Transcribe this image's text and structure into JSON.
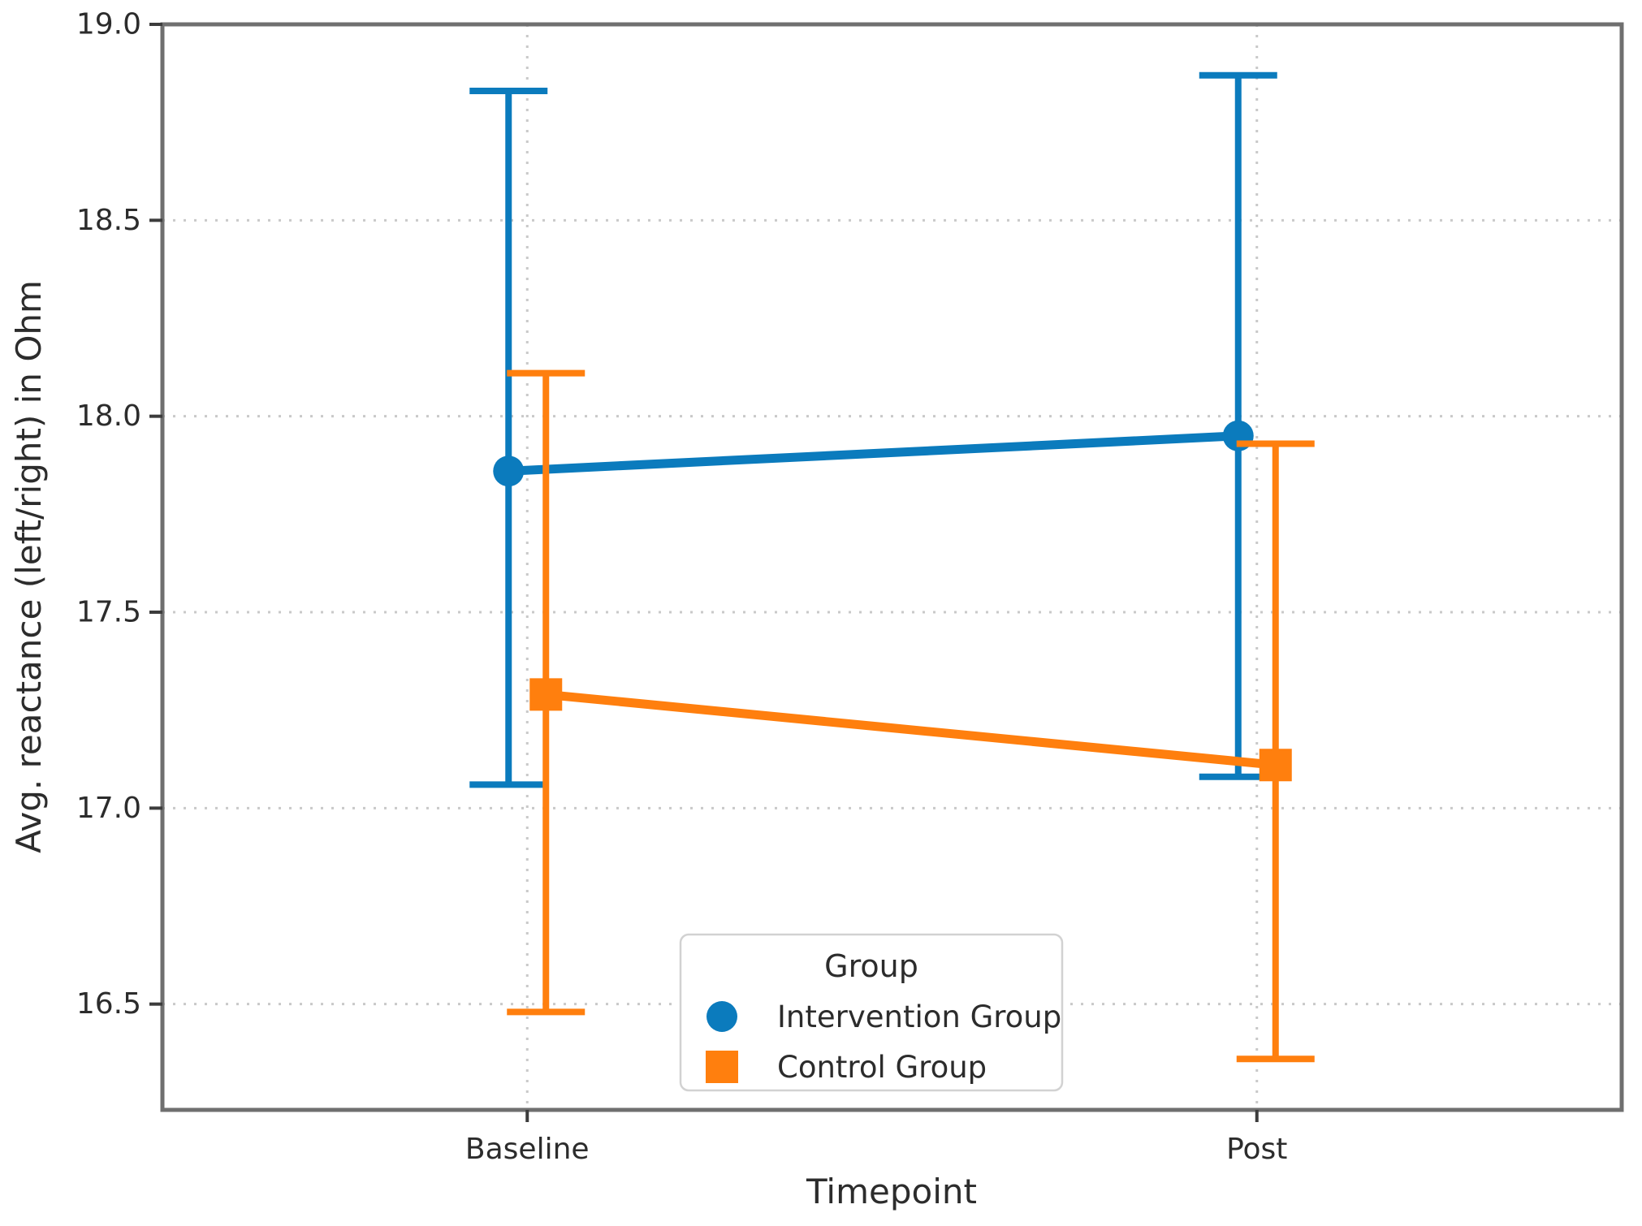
{
  "chart_data": {
    "type": "line",
    "subtype": "pointplot-with-error-bars",
    "categories": [
      "Baseline",
      "Post"
    ],
    "xlabel": "Timepoint",
    "ylabel": "Avg. reactance (left/right) in Ohm",
    "ylim": [
      16.23,
      19.0
    ],
    "yticks": [
      19.0,
      18.5,
      18.0,
      17.5,
      17.0,
      16.5
    ],
    "ytick_labels": [
      "19.0",
      "18.5",
      "18.0",
      "17.5",
      "17.0",
      "16.5"
    ],
    "grid": {
      "visible": true,
      "style": "dotted",
      "axes": "both"
    },
    "legend": {
      "title": "Group",
      "position": "lower center"
    },
    "series": [
      {
        "name": "Intervention Group",
        "marker": "circle",
        "color": "#0b7bbd",
        "values": [
          17.86,
          17.95
        ],
        "ci_low": [
          17.06,
          17.08
        ],
        "ci_high": [
          18.83,
          18.87
        ]
      },
      {
        "name": "Control Group",
        "marker": "square",
        "color": "#ff7f0e",
        "values": [
          17.29,
          17.11
        ],
        "ci_low": [
          16.48,
          16.36
        ],
        "ci_high": [
          18.11,
          17.93
        ]
      }
    ],
    "colors": {
      "grid": "#c9c9c9",
      "axis": "#6f6f6f",
      "text": "#2c2c2c"
    }
  }
}
